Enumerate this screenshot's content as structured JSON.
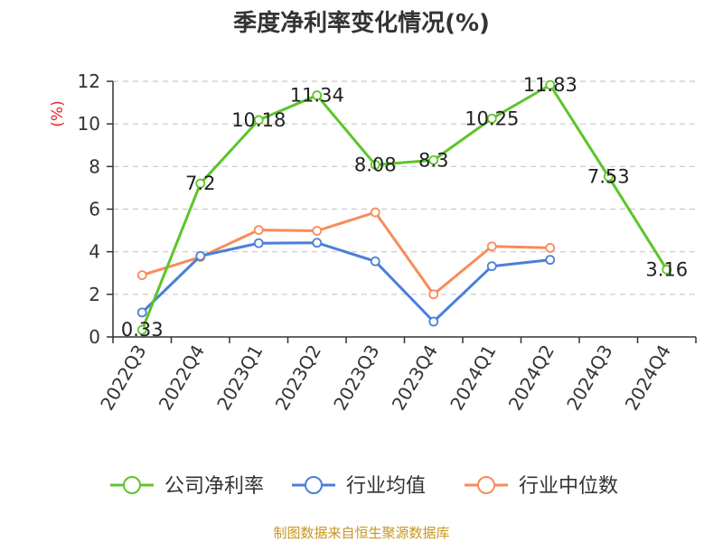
{
  "chart_data": {
    "type": "line",
    "title": "季度净利率变化情况(%)",
    "ylabel": "(%)",
    "ylim": [
      0,
      12
    ],
    "yticks": [
      0,
      2,
      4,
      6,
      8,
      10,
      12
    ],
    "grid": true,
    "legend_position": "bottom",
    "categories": [
      "2022Q3",
      "2022Q4",
      "2023Q1",
      "2023Q2",
      "2023Q3",
      "2023Q4",
      "2024Q1",
      "2024Q2",
      "2024Q3",
      "2024Q4"
    ],
    "series": [
      {
        "name": "公司净利率",
        "color": "#5cc52a",
        "values": [
          0.33,
          7.2,
          10.18,
          11.34,
          8.08,
          8.3,
          10.25,
          11.83,
          7.53,
          3.16
        ],
        "labels": [
          "0.33",
          "7.2",
          "10.18",
          "11.34",
          "8.08",
          "8.3",
          "10.25",
          "11.83",
          "7.53",
          "3.16"
        ]
      },
      {
        "name": "行业均值",
        "color": "#4a7fdb",
        "values": [
          1.15,
          3.8,
          4.4,
          4.42,
          3.55,
          0.72,
          3.32,
          3.62,
          null,
          null
        ]
      },
      {
        "name": "行业中位数",
        "color": "#f78c5a",
        "values": [
          2.9,
          3.75,
          5.02,
          4.98,
          5.85,
          2.0,
          4.25,
          4.18,
          null,
          null
        ]
      }
    ],
    "source": "制图数据来自恒生聚源数据库"
  }
}
